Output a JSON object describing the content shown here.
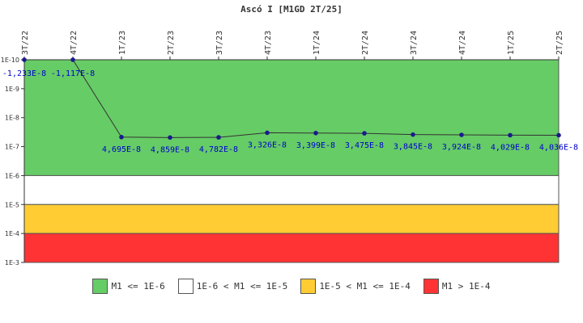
{
  "chart_data": {
    "type": "line",
    "title": "Ascó I [M1GD 2T/25]",
    "y_scale": "log",
    "y_axis_inverted": true,
    "ylim": [
      1e-10,
      0.001
    ],
    "y_ticks": [
      {
        "value": 1e-10,
        "label": "1E-10"
      },
      {
        "value": 1e-09,
        "label": "1E-9"
      },
      {
        "value": 1e-08,
        "label": "1E-8"
      },
      {
        "value": 1e-07,
        "label": "1E-7"
      },
      {
        "value": 1e-06,
        "label": "1E-6"
      },
      {
        "value": 1e-05,
        "label": "1E-5"
      },
      {
        "value": 0.0001,
        "label": "1E-4"
      },
      {
        "value": 0.001,
        "label": "1E-3"
      }
    ],
    "categories": [
      "3T/22",
      "4T/22",
      "1T/23",
      "2T/23",
      "3T/23",
      "4T/23",
      "1T/24",
      "2T/24",
      "3T/24",
      "4T/24",
      "1T/25",
      "2T/25"
    ],
    "values": [
      -1.233e-08,
      -1.117e-08,
      4.695e-08,
      4.859e-08,
      4.782e-08,
      3.326e-08,
      3.399e-08,
      3.475e-08,
      3.845e-08,
      3.924e-08,
      4.029e-08,
      4.036e-08
    ],
    "data_labels": [
      "-1,233E-8",
      "-1,117E-8",
      "4,695E-8",
      "4,859E-8",
      "4,782E-8",
      "3,326E-8",
      "3,399E-8",
      "3,475E-8",
      "3,845E-8",
      "3,924E-8",
      "4,029E-8",
      "4,036E-8"
    ],
    "bands": [
      {
        "from": 1e-10,
        "to": 1e-06,
        "color": "#66cc66",
        "label": "M1 <= 1E-6"
      },
      {
        "from": 1e-06,
        "to": 1e-05,
        "color": "#ffffff",
        "label": "1E-6 < M1 <= 1E-5"
      },
      {
        "from": 1e-05,
        "to": 0.0001,
        "color": "#ffcc33",
        "label": "1E-5 < M1 <= 1E-4"
      },
      {
        "from": 0.0001,
        "to": 0.001,
        "color": "#ff3333",
        "label": "M1 > 1E-4"
      }
    ],
    "legend_position": "bottom",
    "colors": {
      "line": "#333333",
      "marker": "#1a1a8c",
      "data_label": "#0000cc",
      "axis": "#333333"
    }
  }
}
